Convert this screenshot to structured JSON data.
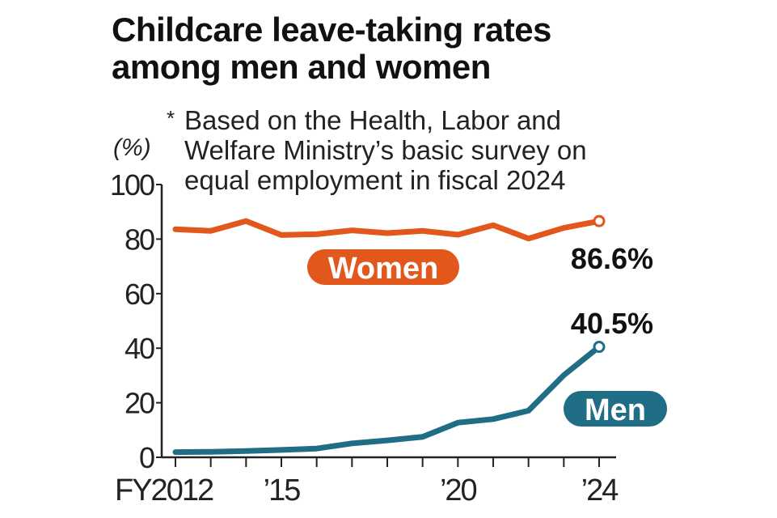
{
  "title_lines": [
    "Childcare leave-taking rates",
    "among men and women"
  ],
  "note": {
    "marker": "*",
    "lines": [
      "Based on the Health, Labor and",
      "Welfare Ministry’s basic survey on",
      "equal employment in fiscal 2024"
    ]
  },
  "unit_label": "(%)",
  "chart_data": {
    "type": "line",
    "title": "Childcare leave-taking rates among men and women",
    "ylabel": "(%)",
    "ylim": [
      0,
      100
    ],
    "yticks": [
      0,
      20,
      40,
      60,
      80,
      100
    ],
    "ytick_labels": [
      "0",
      "20",
      "40",
      "60",
      "80",
      "100"
    ],
    "x": [
      2012,
      2013,
      2014,
      2015,
      2016,
      2017,
      2018,
      2019,
      2020,
      2021,
      2022,
      2023,
      2024
    ],
    "xtick_labels": [
      {
        "x": 2012,
        "label": "FY2012"
      },
      {
        "x": 2015,
        "label": "’15"
      },
      {
        "x": 2020,
        "label": "’20"
      },
      {
        "x": 2024,
        "label": "’24"
      }
    ],
    "grid": false,
    "series": [
      {
        "name": "Women",
        "color": "#e2571b",
        "values": [
          83.6,
          83.0,
          86.6,
          81.5,
          81.8,
          83.2,
          82.2,
          83.0,
          81.6,
          85.1,
          80.2,
          84.1,
          86.6
        ],
        "end_label": "86.6%"
      },
      {
        "name": "Men",
        "color": "#1f6e86",
        "values": [
          1.9,
          2.0,
          2.3,
          2.7,
          3.2,
          5.1,
          6.2,
          7.5,
          12.7,
          14.0,
          17.1,
          30.1,
          40.5
        ],
        "end_label": "40.5%"
      }
    ]
  }
}
